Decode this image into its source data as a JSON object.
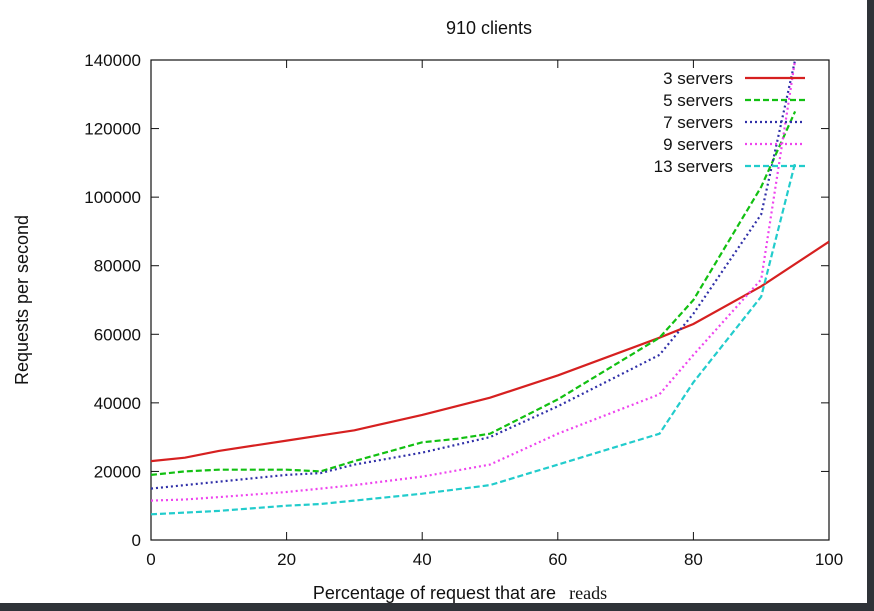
{
  "chart_data": {
    "type": "line",
    "title": "910 clients",
    "xlabel": "Percentage of request that are",
    "xlabel_suffix": "reads",
    "ylabel": "Requests per second",
    "xlim": [
      0,
      100
    ],
    "ylim": [
      0,
      140000
    ],
    "xticks": [
      0,
      20,
      40,
      60,
      80,
      100
    ],
    "yticks": [
      0,
      20000,
      40000,
      60000,
      80000,
      100000,
      120000,
      140000
    ],
    "legend_position": "top-right",
    "grid": false,
    "series": [
      {
        "name": "3 servers",
        "color": "#d62020",
        "style": "solid",
        "x": [
          0,
          5,
          10,
          20,
          25,
          30,
          40,
          50,
          60,
          75,
          80,
          90,
          100
        ],
        "y": [
          23000,
          24000,
          26000,
          29000,
          30500,
          32000,
          36500,
          41500,
          48000,
          59000,
          63000,
          74000,
          87000
        ]
      },
      {
        "name": "5 servers",
        "color": "#12c012",
        "style": "dashed",
        "x": [
          0,
          5,
          10,
          20,
          25,
          30,
          40,
          45,
          50,
          60,
          75,
          80,
          90,
          95
        ],
        "y": [
          19000,
          20000,
          20500,
          20500,
          20000,
          23000,
          28500,
          29500,
          31000,
          41000,
          59000,
          70000,
          103000,
          125000
        ]
      },
      {
        "name": "7 servers",
        "color": "#3030a8",
        "style": "dotted",
        "x": [
          0,
          5,
          10,
          20,
          25,
          30,
          40,
          50,
          60,
          75,
          80,
          90,
          95
        ],
        "y": [
          15000,
          16000,
          17000,
          19000,
          19500,
          22000,
          25500,
          30000,
          39000,
          54000,
          66000,
          95000,
          140000
        ]
      },
      {
        "name": "9 servers",
        "color": "#ee44ee",
        "style": "dotted",
        "x": [
          0,
          5,
          10,
          20,
          25,
          30,
          40,
          50,
          60,
          75,
          80,
          90,
          95
        ],
        "y": [
          11500,
          11800,
          12500,
          14000,
          15000,
          16000,
          18500,
          22000,
          31000,
          42500,
          54000,
          76000,
          140000
        ]
      },
      {
        "name": "13 servers",
        "color": "#22cccc",
        "style": "dashed",
        "x": [
          0,
          5,
          10,
          20,
          25,
          30,
          40,
          50,
          60,
          75,
          80,
          90,
          95
        ],
        "y": [
          7500,
          8000,
          8500,
          10000,
          10500,
          11500,
          13500,
          16000,
          22000,
          31000,
          46000,
          71000,
          110000
        ]
      }
    ]
  }
}
